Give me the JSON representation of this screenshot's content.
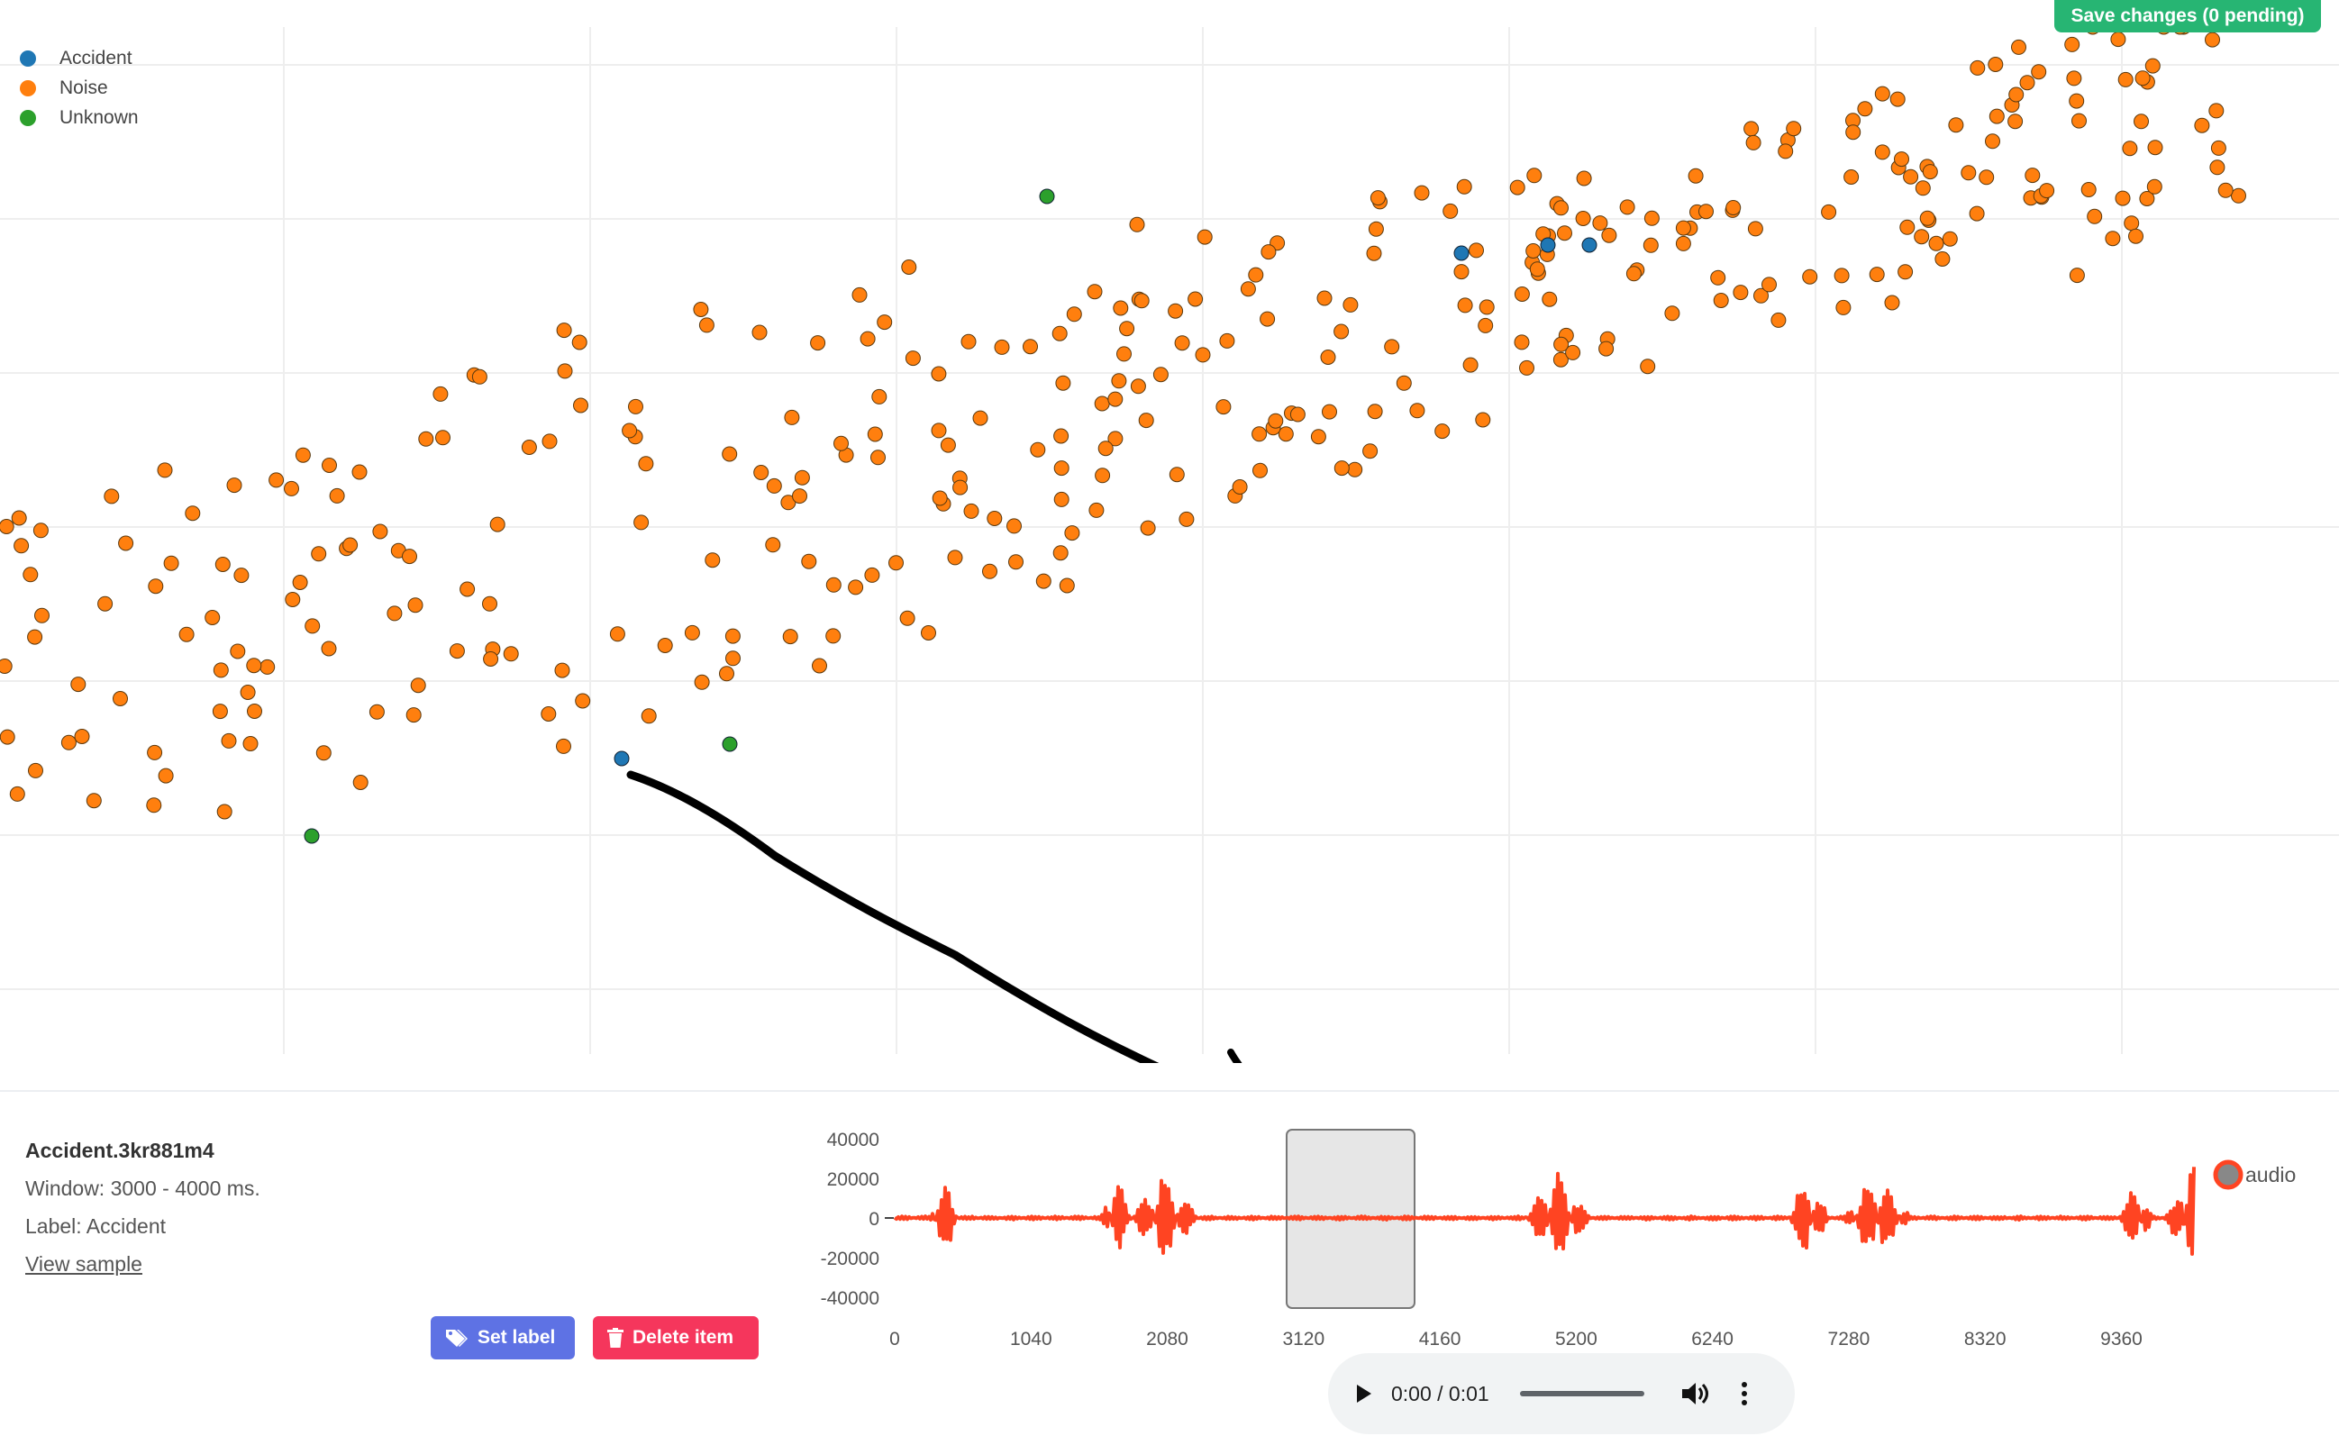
{
  "toolbar": {
    "save_label": "Save changes (0 pending)"
  },
  "legend": [
    {
      "name": "Accident",
      "color": "#1f77b4"
    },
    {
      "name": "Noise",
      "color": "#ff7f0e"
    },
    {
      "name": "Unknown",
      "color": "#2ca02c"
    }
  ],
  "sample": {
    "title": "Accident.3kr881m4",
    "window": "Window: 3000 - 4000 ms.",
    "label": "Label: Accident",
    "view_link": "View sample"
  },
  "actions": {
    "set_label": "Set label",
    "delete": "Delete item"
  },
  "waveform": {
    "series_name": "audio",
    "series_color": "#ff4422",
    "y_ticks": [
      "40000",
      "20000",
      "0",
      "-20000",
      "-40000"
    ],
    "x_ticks": [
      "0",
      "1040",
      "2080",
      "3120",
      "4160",
      "5200",
      "6240",
      "7280",
      "8320",
      "9360"
    ],
    "selection_ms": [
      3000,
      4000
    ]
  },
  "player": {
    "time": "0:00 / 0:01"
  },
  "chart_data": [
    {
      "type": "scatter",
      "series": [
        {
          "name": "Accident",
          "color": "#1f77b4"
        },
        {
          "name": "Noise",
          "color": "#ff7f0e"
        },
        {
          "name": "Unknown",
          "color": "#2ca02c"
        }
      ]
    },
    {
      "type": "line",
      "series": [
        {
          "name": "audio",
          "color": "#ff4422"
        }
      ],
      "x_ticks": [
        0,
        1040,
        2080,
        3120,
        4160,
        5200,
        6240,
        7280,
        8320,
        9360
      ],
      "y_ticks": [
        40000,
        20000,
        0,
        -20000,
        -40000
      ],
      "ylim": [
        -40000,
        40000
      ]
    }
  ]
}
